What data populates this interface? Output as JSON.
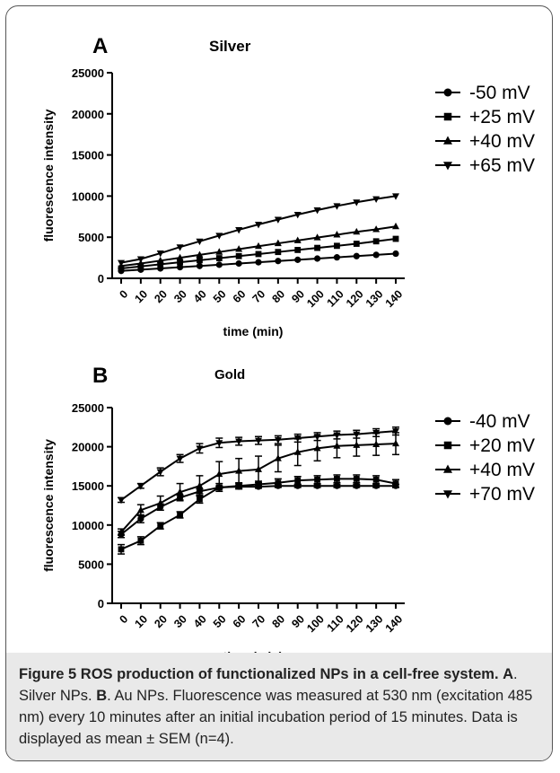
{
  "figure": {
    "caption": {
      "label": "Figure 5",
      "title": "ROS production of functionalized NPs in a cell-free system.",
      "panel_a_letter": "A",
      "panel_a_text": "Silver NPs.",
      "panel_b_letter": "B",
      "panel_b_text": "Au NPs. Fluorescence was measured at 530 nm (excitation 485 nm) every 10 minutes after an initial incubation period of 15 minutes. Data is displayed as mean ± SEM (n=4)."
    }
  },
  "chart_data": [
    {
      "type": "line",
      "panel": "A",
      "title": "Silver",
      "xlabel": "time (min)",
      "ylabel": "fluorescence intensity",
      "xlim": [
        0,
        140
      ],
      "ylim": [
        0,
        25000
      ],
      "x": [
        0,
        10,
        20,
        30,
        40,
        50,
        60,
        70,
        80,
        90,
        100,
        110,
        120,
        130,
        140
      ],
      "x_tick_labels": [
        "0",
        "10",
        "20",
        "30",
        "40",
        "50",
        "60",
        "70",
        "80",
        "90",
        "100",
        "110",
        "120",
        "130",
        "140"
      ],
      "y_ticks": [
        0,
        5000,
        10000,
        15000,
        20000,
        25000
      ],
      "y_tick_labels": [
        "0",
        "5000",
        "10000",
        "15000",
        "20000",
        "25000"
      ],
      "legend_position": "right",
      "series": [
        {
          "name": "-50 mV",
          "marker": "circle",
          "values": [
            900,
            1050,
            1200,
            1350,
            1500,
            1650,
            1800,
            1950,
            2100,
            2250,
            2400,
            2550,
            2700,
            2850,
            3000
          ]
        },
        {
          "name": "+25 mV",
          "marker": "square",
          "values": [
            1200,
            1450,
            1700,
            1950,
            2200,
            2450,
            2700,
            2950,
            3200,
            3450,
            3700,
            3950,
            4200,
            4500,
            4800
          ]
        },
        {
          "name": "+40 mV",
          "marker": "triangle-up",
          "values": [
            1500,
            1800,
            2150,
            2500,
            2850,
            3200,
            3550,
            3900,
            4250,
            4600,
            4950,
            5300,
            5650,
            5950,
            6300
          ]
        },
        {
          "name": "+65 mV",
          "marker": "triangle-down",
          "values": [
            1900,
            2350,
            3050,
            3800,
            4500,
            5200,
            5900,
            6550,
            7150,
            7750,
            8300,
            8800,
            9250,
            9650,
            10000
          ]
        }
      ]
    },
    {
      "type": "line",
      "panel": "B",
      "title": "Gold",
      "xlabel": "time (min)",
      "ylabel": "fluorescence intensity",
      "xlim": [
        0,
        140
      ],
      "ylim": [
        0,
        25000
      ],
      "x": [
        0,
        10,
        20,
        30,
        40,
        50,
        60,
        70,
        80,
        90,
        100,
        110,
        120,
        130,
        140
      ],
      "x_tick_labels": [
        "0",
        "10",
        "20",
        "30",
        "40",
        "50",
        "60",
        "70",
        "80",
        "90",
        "100",
        "110",
        "120",
        "130",
        "140"
      ],
      "y_ticks": [
        0,
        5000,
        10000,
        15000,
        20000,
        25000
      ],
      "y_tick_labels": [
        "0",
        "5000",
        "10000",
        "15000",
        "20000",
        "25000"
      ],
      "legend_position": "right",
      "series": [
        {
          "name": "-40 mV",
          "marker": "circle",
          "values": [
            8800,
            10800,
            12300,
            13500,
            14300,
            14800,
            14900,
            14900,
            15000,
            15000,
            15000,
            15000,
            15000,
            15000,
            15000
          ],
          "errors": [
            400,
            500,
            400,
            300,
            300,
            200,
            200,
            200,
            200,
            200,
            200,
            200,
            200,
            200,
            200
          ]
        },
        {
          "name": "+20 mV",
          "marker": "square",
          "values": [
            6900,
            8000,
            9900,
            11300,
            13300,
            14800,
            15000,
            15200,
            15400,
            15700,
            15800,
            15900,
            15900,
            15800,
            15300
          ],
          "errors": [
            600,
            500,
            400,
            400,
            500,
            500,
            400,
            400,
            500,
            500,
            500,
            500,
            500,
            500,
            500
          ]
        },
        {
          "name": "+40 mV",
          "marker": "triangle-up",
          "values": [
            9100,
            11900,
            12800,
            14200,
            15000,
            16500,
            16900,
            17100,
            18500,
            19300,
            19800,
            20100,
            20200,
            20300,
            20400
          ],
          "errors": [
            400,
            700,
            900,
            1100,
            1300,
            1600,
            1600,
            1700,
            1700,
            1700,
            1600,
            1500,
            1400,
            1400,
            1400
          ]
        },
        {
          "name": "+70 mV",
          "marker": "triangle-down",
          "values": [
            13200,
            15000,
            16800,
            18500,
            19800,
            20500,
            20700,
            20800,
            20900,
            21100,
            21300,
            21500,
            21600,
            21800,
            22000
          ],
          "errors": [
            300,
            300,
            500,
            500,
            600,
            600,
            500,
            500,
            500,
            500,
            500,
            500,
            500,
            500,
            500
          ]
        }
      ]
    }
  ]
}
